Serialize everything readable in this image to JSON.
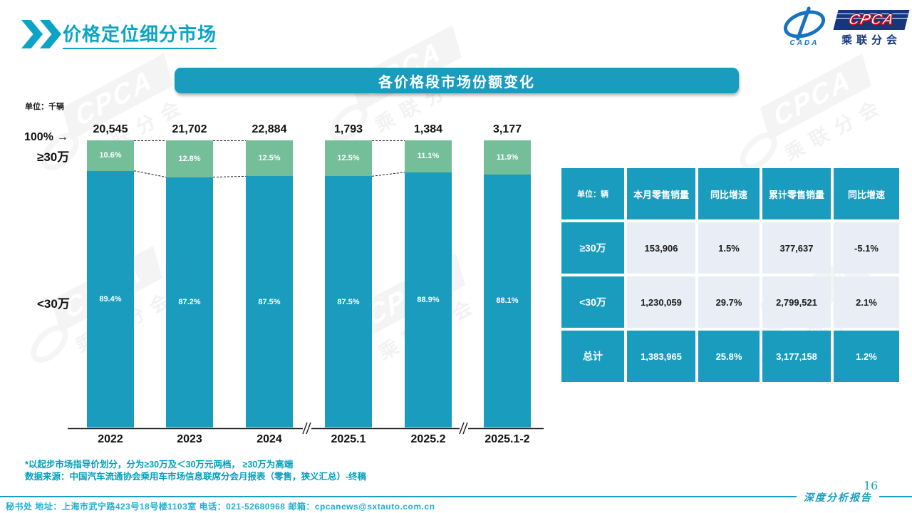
{
  "page": {
    "title": "价格定位细分市场",
    "page_number": "16",
    "report_label": "深度分析报告",
    "footer_contact": "秘书处  地址：上海市武宁路423号18号楼1103室 电话：021-52680968  邮箱：cpcanews@sxtauto.com.cn",
    "note_line1": "*以起步市场指导价划分，分为≥30万及＜30万元两档， ≥30万为高端",
    "note_line2": "数据来源：中国汽车流通协会乘用车市场信息联席分会月报表（零售，狭义汇总）-终稿"
  },
  "logo": {
    "cada_label": "CADA",
    "cpca_label": "CPCA",
    "org_label": "乘联分会"
  },
  "chart": {
    "banner_title": "各价格段市场份额变化",
    "unit_label": "单位：千辆",
    "pct_axis_label": "100%",
    "arrow": "→",
    "high_label": "≥30万",
    "low_label": "<30万"
  },
  "chart_data": {
    "type": "bar",
    "stacked": true,
    "title": "各价格段市场份额变化",
    "unit": "千辆",
    "categories": [
      "2022",
      "2023",
      "2024",
      "2025.1",
      "2025.2",
      "2025.1-2"
    ],
    "totals": [
      "20,545",
      "21,702",
      "22,884",
      "1,793",
      "1,384",
      "3,177"
    ],
    "series": [
      {
        "name": "≥30万",
        "values": [
          10.6,
          12.8,
          12.5,
          12.5,
          11.1,
          11.9
        ],
        "color": "#74BE9A"
      },
      {
        "name": "<30万",
        "values": [
          89.4,
          87.2,
          87.5,
          87.5,
          88.9,
          88.1
        ],
        "color": "#1A9CBE"
      }
    ],
    "ylim": [
      0,
      100
    ],
    "axis_breaks_after": [
      "2024",
      "2025.2"
    ],
    "connected_groups": [
      [
        0,
        1,
        2
      ],
      [
        3,
        4
      ]
    ],
    "legend_position": "left"
  },
  "table": {
    "headers": [
      "单位：辆",
      "本月零售销量",
      "同比增速",
      "累计零售销量",
      "同比增速"
    ],
    "rows": [
      {
        "label": "≥30万",
        "cells": [
          "153,906",
          "1.5%",
          "377,637",
          "-5.1%"
        ],
        "is_total": false
      },
      {
        "label": "<30万",
        "cells": [
          "1,230,059",
          "29.7%",
          "2,799,521",
          "2.1%"
        ],
        "is_total": false
      },
      {
        "label": "总计",
        "cells": [
          "1,383,965",
          "25.8%",
          "3,177,158",
          "1.2%"
        ],
        "is_total": true
      }
    ]
  },
  "colors": {
    "teal": "#1A9CBE",
    "green": "#74BE9A",
    "heading_teal": "#0BA4C6",
    "note_teal": "#00A0BC",
    "contact_cyan": "#1FB0D2",
    "table_cell_bg": "#E9EEF6",
    "logo_navy": "#16377E",
    "logo_blue": "#1673C0",
    "logo_red": "#E60012"
  }
}
